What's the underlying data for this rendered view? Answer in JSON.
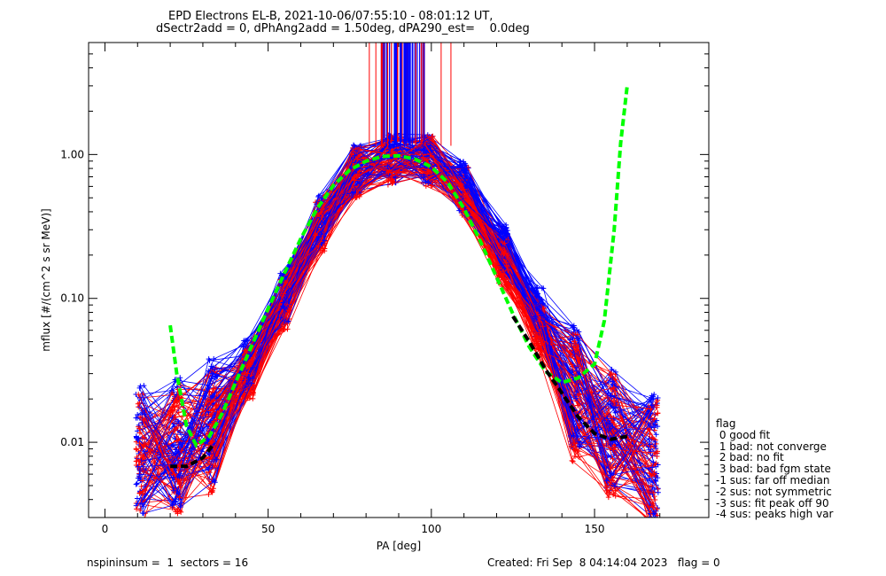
{
  "title": {
    "line1": "EPD Electrons EL-B, 2021-10-06/07:55:10 - 08:01:12 UT,",
    "line2": "dSectr2add = 0, dPhAng2add = 1.50deg, dPA290_est=    0.0deg"
  },
  "footer": {
    "left": "nspininsum =  1  sectors = 16",
    "right": "Created: Fri Sep  8 04:14:04 2023   flag = 0"
  },
  "legend": {
    "title": "flag",
    "items": [
      " 0 good fit",
      " 1 bad: not converge",
      " 2 bad: no fit",
      " 3 bad: bad fgm state",
      "-1 sus: far off median",
      "-2 sus: not symmetric",
      "-3 sus: fit peak off 90",
      "-4 sus: peaks high var"
    ]
  },
  "colors": {
    "series_a": "#0000ff",
    "series_b": "#ff0000",
    "fit_main": "#00ff00",
    "fit_secondary": "#000000"
  },
  "chart_data": {
    "type": "line",
    "xlabel": "PA [deg]",
    "ylabel": "mflux [#/(cm^2 s sr MeV)]",
    "xlim": [
      -5,
      185
    ],
    "ylim": [
      0.003,
      6
    ],
    "yscale": "log",
    "xticks": [
      0,
      50,
      100,
      150
    ],
    "xtick_labels": [
      "0",
      "50",
      "100",
      "150"
    ],
    "yticks": [
      0.01,
      0.1,
      1.0
    ],
    "ytick_labels": [
      "0.01",
      "0.10",
      "1.00"
    ],
    "grid": false,
    "marker": "+",
    "series": [
      {
        "color": "#0000ff",
        "x": [
          11,
          22,
          33,
          44,
          55,
          66,
          77,
          88,
          99,
          110,
          122,
          133,
          144,
          155,
          168
        ],
        "y": [
          0.009,
          0.01,
          0.014,
          0.035,
          0.1,
          0.35,
          0.8,
          0.95,
          0.92,
          0.6,
          0.22,
          0.08,
          0.025,
          0.012,
          0.008
        ]
      },
      {
        "color": "#ff0000",
        "x": [
          11,
          22,
          33,
          44,
          55,
          66,
          77,
          88,
          99,
          110,
          122,
          133,
          144,
          155,
          168
        ],
        "y": [
          0.008,
          0.009,
          0.012,
          0.03,
          0.09,
          0.32,
          0.75,
          0.92,
          0.9,
          0.55,
          0.18,
          0.06,
          0.02,
          0.011,
          0.007
        ]
      }
    ],
    "fit_curves": [
      {
        "style": "dashed",
        "color": "#00ff00",
        "x": [
          20,
          22,
          25,
          28,
          32,
          36,
          40,
          45,
          50,
          55,
          60,
          65,
          70,
          75,
          80,
          85,
          90,
          95,
          100,
          105,
          110,
          115,
          120,
          125,
          130,
          135,
          140,
          145,
          150,
          153,
          156,
          158,
          160
        ],
        "y": [
          0.065,
          0.03,
          0.013,
          0.0095,
          0.011,
          0.016,
          0.026,
          0.047,
          0.085,
          0.15,
          0.26,
          0.42,
          0.61,
          0.78,
          0.9,
          0.97,
          0.98,
          0.93,
          0.82,
          0.64,
          0.42,
          0.25,
          0.14,
          0.078,
          0.046,
          0.031,
          0.026,
          0.028,
          0.035,
          0.07,
          0.3,
          1.2,
          3.0
        ]
      },
      {
        "style": "dashed",
        "color": "#000000",
        "x": [
          20,
          25,
          30,
          33
        ],
        "y": [
          0.0068,
          0.0068,
          0.0078,
          0.0095
        ]
      },
      {
        "style": "dashed",
        "color": "#000000",
        "x": [
          125,
          130,
          135,
          140,
          145,
          150,
          155,
          160
        ],
        "y": [
          0.075,
          0.05,
          0.032,
          0.022,
          0.015,
          0.0115,
          0.0105,
          0.011
        ]
      }
    ],
    "x": [
      0,
      50,
      100,
      150
    ]
  }
}
